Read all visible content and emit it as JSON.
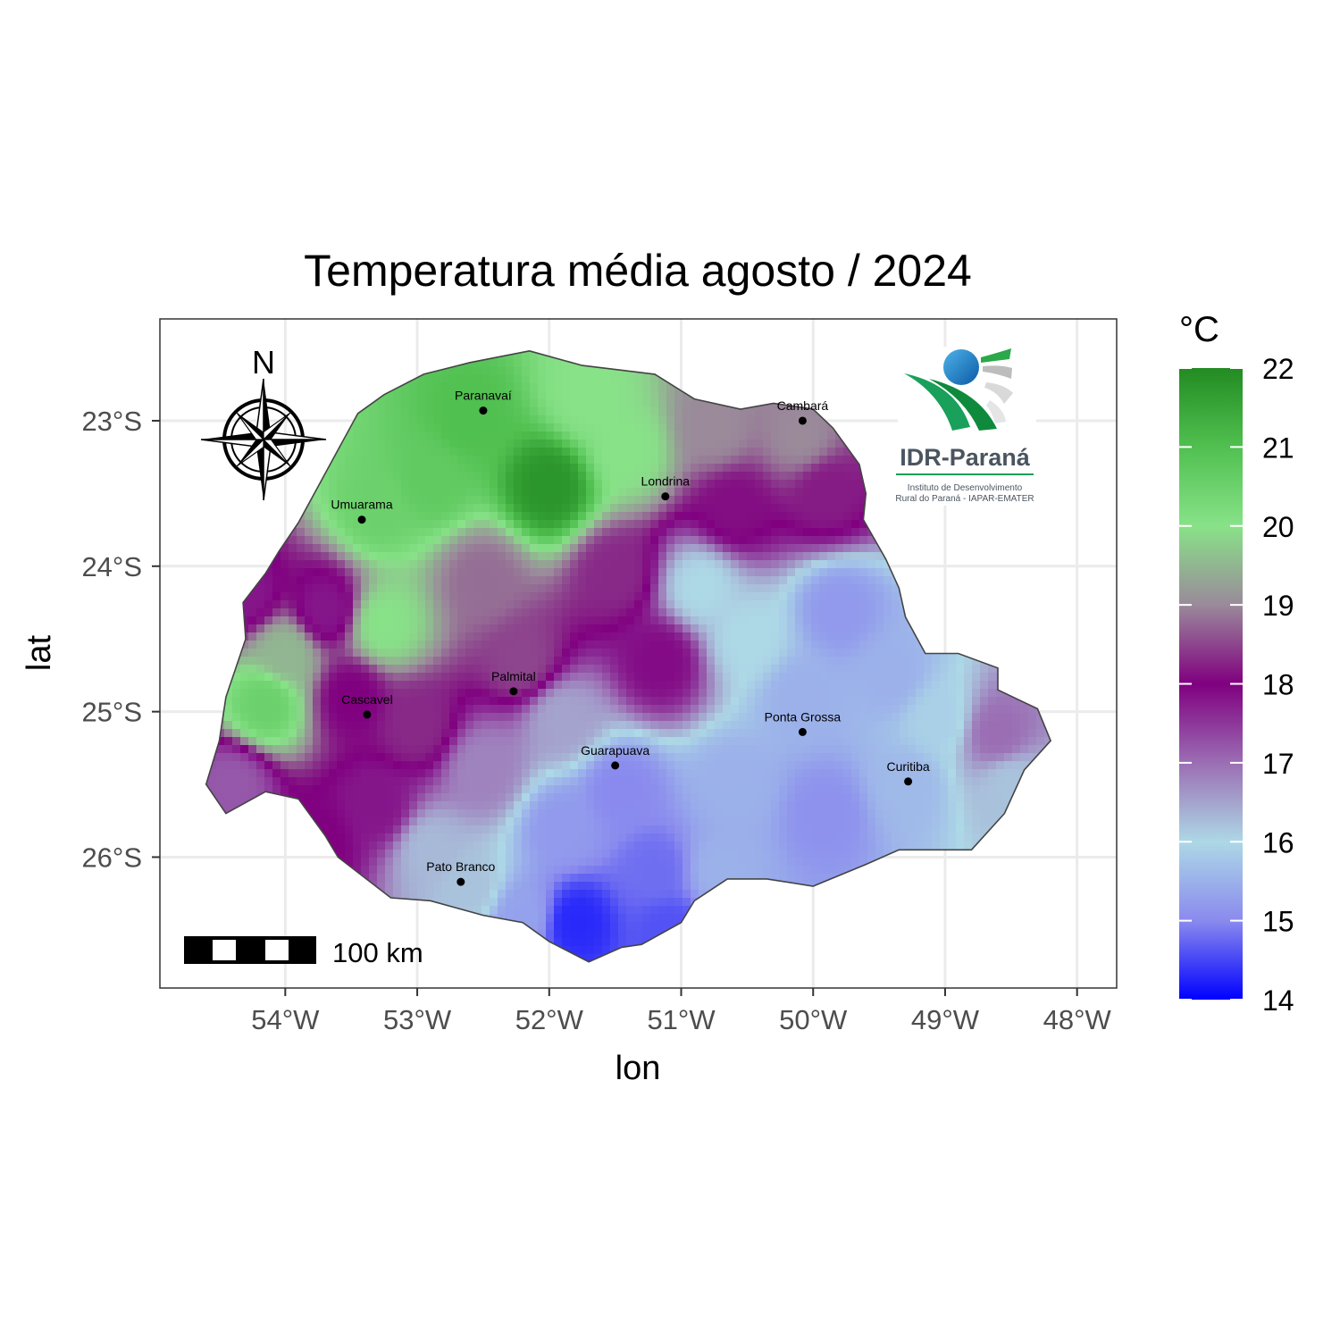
{
  "title": "Temperatura média agosto / 2024",
  "axes": {
    "x_label": "lon",
    "y_label": "lat",
    "x_ticks": [
      "54°W",
      "53°W",
      "52°W",
      "51°W",
      "50°W",
      "49°W",
      "48°W"
    ],
    "y_ticks": [
      "23°S",
      "24°S",
      "25°S",
      "26°S"
    ],
    "lon_range": [
      -54.95,
      -47.7
    ],
    "lat_range": [
      -26.9,
      -22.3
    ]
  },
  "legend": {
    "title": "°C",
    "ticks": [
      "22",
      "21",
      "20",
      "19",
      "18",
      "17",
      "16",
      "15",
      "14"
    ],
    "range": [
      14,
      22
    ],
    "colors": [
      "#0000ff",
      "#8a8aee",
      "#add8e6",
      "#9b6eb4",
      "#800080",
      "#9a8a9a",
      "#88e288",
      "#50c050",
      "#228b22"
    ],
    "placement": "right"
  },
  "north_arrow": {
    "label": "N"
  },
  "scale_bar": {
    "label": "100 km"
  },
  "logo": {
    "name": "IDR-Paraná",
    "subtitle_1": "Instituto de Desenvolvimento",
    "subtitle_2": "Rural do Paraná - IAPAR-EMATER"
  },
  "cities": [
    {
      "name": "Paranavaí",
      "lon": -52.5,
      "lat": -22.93
    },
    {
      "name": "Cambará",
      "lon": -50.08,
      "lat": -23.0
    },
    {
      "name": "Londrina",
      "lon": -51.12,
      "lat": -23.52
    },
    {
      "name": "Umuarama",
      "lon": -53.42,
      "lat": -23.68
    },
    {
      "name": "Palmital",
      "lon": -52.27,
      "lat": -24.86
    },
    {
      "name": "Cascavel",
      "lon": -53.38,
      "lat": -25.02
    },
    {
      "name": "Ponta Grossa",
      "lon": -50.08,
      "lat": -25.14
    },
    {
      "name": "Guarapuava",
      "lon": -51.5,
      "lat": -25.37
    },
    {
      "name": "Curitiba",
      "lon": -49.28,
      "lat": -25.48
    },
    {
      "name": "Pato Branco",
      "lon": -52.67,
      "lat": -26.17
    }
  ],
  "chart_data": {
    "type": "heatmap",
    "title": "Temperatura média agosto / 2024",
    "xlabel": "lon",
    "ylabel": "lat",
    "zlabel": "°C",
    "xlim": [
      -54.95,
      -47.7
    ],
    "ylim": [
      -26.9,
      -22.3
    ],
    "zlim": [
      14,
      22
    ],
    "colorscale": [
      [
        14,
        "#0000ff"
      ],
      [
        15,
        "#8a8aee"
      ],
      [
        16,
        "#add8e6"
      ],
      [
        17,
        "#9b6eb4"
      ],
      [
        18,
        "#800080"
      ],
      [
        19,
        "#9a8a9a"
      ],
      [
        20,
        "#88e288"
      ],
      [
        21,
        "#50c050"
      ],
      [
        22,
        "#228b22"
      ]
    ],
    "region_boundary": [
      [
        -52.15,
        -22.52
      ],
      [
        -51.75,
        -22.62
      ],
      [
        -51.2,
        -22.68
      ],
      [
        -50.9,
        -22.85
      ],
      [
        -50.55,
        -22.92
      ],
      [
        -50.3,
        -22.88
      ],
      [
        -50.0,
        -22.92
      ],
      [
        -49.85,
        -23.05
      ],
      [
        -49.65,
        -23.3
      ],
      [
        -49.6,
        -23.5
      ],
      [
        -49.62,
        -23.68
      ],
      [
        -49.45,
        -23.95
      ],
      [
        -49.35,
        -24.15
      ],
      [
        -49.3,
        -24.35
      ],
      [
        -49.15,
        -24.6
      ],
      [
        -48.9,
        -24.6
      ],
      [
        -48.6,
        -24.7
      ],
      [
        -48.6,
        -24.85
      ],
      [
        -48.3,
        -24.98
      ],
      [
        -48.2,
        -25.2
      ],
      [
        -48.4,
        -25.4
      ],
      [
        -48.55,
        -25.7
      ],
      [
        -48.8,
        -25.95
      ],
      [
        -49.1,
        -25.95
      ],
      [
        -49.35,
        -25.95
      ],
      [
        -49.6,
        -26.05
      ],
      [
        -50.0,
        -26.2
      ],
      [
        -50.35,
        -26.15
      ],
      [
        -50.65,
        -26.15
      ],
      [
        -50.9,
        -26.3
      ],
      [
        -51.0,
        -26.45
      ],
      [
        -51.3,
        -26.6
      ],
      [
        -51.45,
        -26.62
      ],
      [
        -51.7,
        -26.72
      ],
      [
        -52.0,
        -26.58
      ],
      [
        -52.2,
        -26.45
      ],
      [
        -52.5,
        -26.4
      ],
      [
        -52.9,
        -26.3
      ],
      [
        -53.2,
        -26.28
      ],
      [
        -53.6,
        -26.0
      ],
      [
        -53.7,
        -25.85
      ],
      [
        -53.9,
        -25.6
      ],
      [
        -54.15,
        -25.55
      ],
      [
        -54.45,
        -25.7
      ],
      [
        -54.6,
        -25.5
      ],
      [
        -54.5,
        -25.2
      ],
      [
        -54.45,
        -24.9
      ],
      [
        -54.3,
        -24.5
      ],
      [
        -54.32,
        -24.25
      ],
      [
        -54.15,
        -24.05
      ],
      [
        -54.05,
        -23.9
      ],
      [
        -53.9,
        -23.7
      ],
      [
        -53.75,
        -23.45
      ],
      [
        -53.6,
        -23.2
      ],
      [
        -53.45,
        -22.95
      ],
      [
        -53.25,
        -22.82
      ],
      [
        -52.95,
        -22.68
      ],
      [
        -52.6,
        -22.6
      ],
      [
        -52.15,
        -22.52
      ]
    ],
    "control_points": [
      {
        "lon": -52.0,
        "lat": -23.45,
        "t": 21.8
      },
      {
        "lon": -52.6,
        "lat": -23.0,
        "t": 21.0
      },
      {
        "lon": -52.9,
        "lat": -23.4,
        "t": 20.7
      },
      {
        "lon": -53.3,
        "lat": -23.6,
        "t": 20.5
      },
      {
        "lon": -51.7,
        "lat": -22.85,
        "t": 20.0
      },
      {
        "lon": -51.4,
        "lat": -23.2,
        "t": 20.0
      },
      {
        "lon": -53.25,
        "lat": -24.4,
        "t": 20.0
      },
      {
        "lon": -54.15,
        "lat": -24.95,
        "t": 20.5
      },
      {
        "lon": -54.0,
        "lat": -24.6,
        "t": 19.5
      },
      {
        "lon": -50.75,
        "lat": -23.05,
        "t": 19.0
      },
      {
        "lon": -50.1,
        "lat": -23.1,
        "t": 19.0
      },
      {
        "lon": -52.5,
        "lat": -24.1,
        "t": 18.8
      },
      {
        "lon": -53.7,
        "lat": -24.3,
        "t": 17.8
      },
      {
        "lon": -54.3,
        "lat": -24.2,
        "t": 17.8
      },
      {
        "lon": -53.5,
        "lat": -24.9,
        "t": 18.0
      },
      {
        "lon": -53.0,
        "lat": -25.1,
        "t": 18.3
      },
      {
        "lon": -52.2,
        "lat": -24.65,
        "t": 18.5
      },
      {
        "lon": -51.5,
        "lat": -24.05,
        "t": 18.3
      },
      {
        "lon": -51.15,
        "lat": -24.65,
        "t": 17.9
      },
      {
        "lon": -50.6,
        "lat": -23.6,
        "t": 18.1
      },
      {
        "lon": -49.9,
        "lat": -23.5,
        "t": 18.2
      },
      {
        "lon": -53.3,
        "lat": -25.65,
        "t": 17.8
      },
      {
        "lon": -53.75,
        "lat": -25.9,
        "t": 18.0
      },
      {
        "lon": -54.4,
        "lat": -25.5,
        "t": 17.2
      },
      {
        "lon": -52.9,
        "lat": -25.95,
        "t": 16.3
      },
      {
        "lon": -52.5,
        "lat": -25.4,
        "t": 16.8
      },
      {
        "lon": -51.9,
        "lat": -25.05,
        "t": 16.5
      },
      {
        "lon": -50.85,
        "lat": -24.15,
        "t": 16.0
      },
      {
        "lon": -50.5,
        "lat": -24.5,
        "t": 16.0
      },
      {
        "lon": -49.8,
        "lat": -24.3,
        "t": 15.2
      },
      {
        "lon": -50.1,
        "lat": -24.9,
        "t": 15.5
      },
      {
        "lon": -49.4,
        "lat": -24.75,
        "t": 15.5
      },
      {
        "lon": -49.05,
        "lat": -25.05,
        "t": 15.9
      },
      {
        "lon": -48.6,
        "lat": -25.15,
        "t": 17.0
      },
      {
        "lon": -48.5,
        "lat": -25.5,
        "t": 16.2
      },
      {
        "lon": -49.3,
        "lat": -25.5,
        "t": 15.6
      },
      {
        "lon": -49.9,
        "lat": -25.7,
        "t": 15.1
      },
      {
        "lon": -50.6,
        "lat": -25.5,
        "t": 15.5
      },
      {
        "lon": -51.45,
        "lat": -25.55,
        "t": 15.0
      },
      {
        "lon": -51.9,
        "lat": -25.8,
        "t": 15.2
      },
      {
        "lon": -50.7,
        "lat": -26.1,
        "t": 15.5
      },
      {
        "lon": -51.2,
        "lat": -26.1,
        "t": 14.8
      },
      {
        "lon": -51.8,
        "lat": -26.45,
        "t": 14.3
      },
      {
        "lon": -52.2,
        "lat": -26.4,
        "t": 15.3
      },
      {
        "lon": -52.6,
        "lat": -26.2,
        "t": 16.2
      },
      {
        "lon": -51.1,
        "lat": -26.5,
        "t": 14.6
      }
    ]
  }
}
